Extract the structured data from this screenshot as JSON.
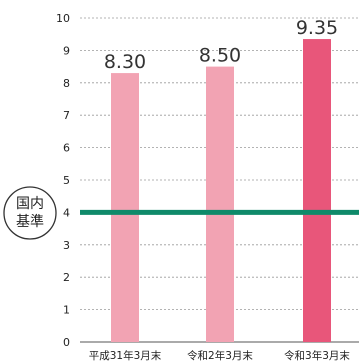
{
  "chart_data": {
    "type": "bar",
    "categories": [
      "平成31年3月末",
      "令和2年3月末",
      "令和3年3月末"
    ],
    "values": [
      8.3,
      8.5,
      9.35
    ],
    "value_labels": [
      "8.30",
      "8.50",
      "9.35"
    ],
    "ylim": [
      0,
      10
    ],
    "yticks": [
      0,
      1,
      2,
      3,
      4,
      5,
      6,
      7,
      8,
      9,
      10
    ],
    "grid": true,
    "bar_colors": [
      "#f2a3b3",
      "#f2a3b3",
      "#e8567a"
    ],
    "reference_line": {
      "value": 4,
      "label_line1": "国内",
      "label_line2": "基準",
      "color": "#0f8a6a"
    }
  }
}
